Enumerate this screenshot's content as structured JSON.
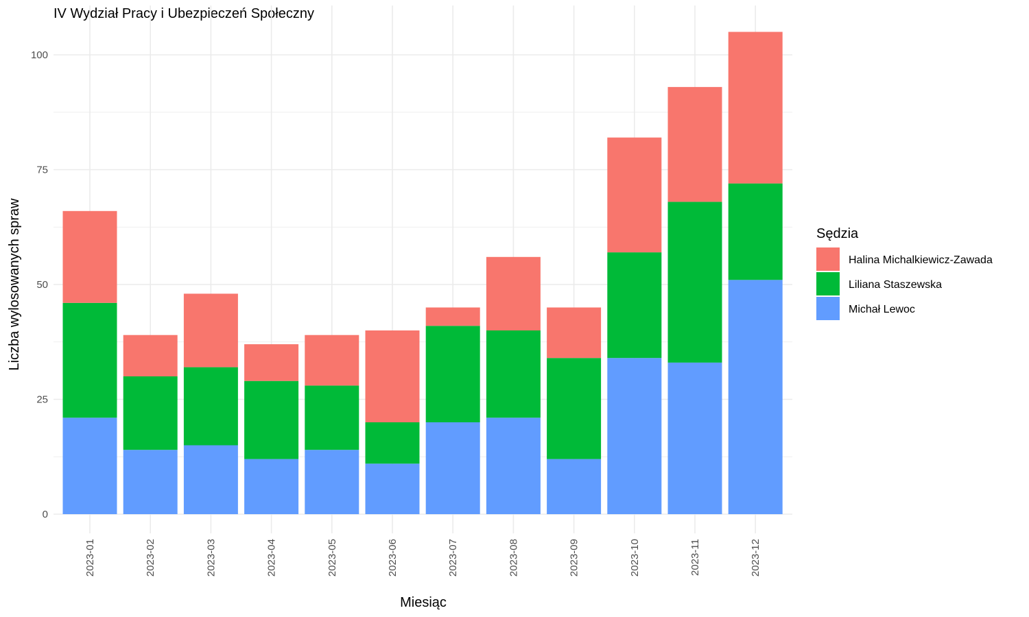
{
  "chart_data": {
    "type": "bar",
    "stacked": true,
    "title": "IV Wydział Pracy i Ubezpieczeń Społeczny",
    "xlabel": "Miesiąc",
    "ylabel": "Liczba wylosowanych spraw",
    "ylim": [
      0,
      105
    ],
    "yticks": [
      0,
      25,
      50,
      75,
      100
    ],
    "grid": true,
    "legend": {
      "title": "Sędzia",
      "position": "right"
    },
    "categories": [
      "2023-01",
      "2023-02",
      "2023-03",
      "2023-04",
      "2023-05",
      "2023-06",
      "2023-07",
      "2023-08",
      "2023-09",
      "2023-10",
      "2023-11",
      "2023-12"
    ],
    "series": [
      {
        "name": "Michał Lewoc",
        "color": "#619CFF",
        "values": [
          21,
          14,
          15,
          12,
          14,
          11,
          20,
          21,
          12,
          34,
          33,
          51
        ]
      },
      {
        "name": "Liliana Staszewska",
        "color": "#00BA38",
        "values": [
          25,
          16,
          17,
          17,
          14,
          9,
          21,
          19,
          22,
          23,
          35,
          21
        ]
      },
      {
        "name": "Halina Michalkiewicz-Zawada",
        "color": "#F8766D",
        "values": [
          20,
          9,
          16,
          8,
          11,
          20,
          4,
          16,
          11,
          25,
          25,
          33
        ]
      }
    ],
    "legend_order": [
      "Halina Michalkiewicz-Zawada",
      "Liliana Staszewska",
      "Michał Lewoc"
    ]
  }
}
